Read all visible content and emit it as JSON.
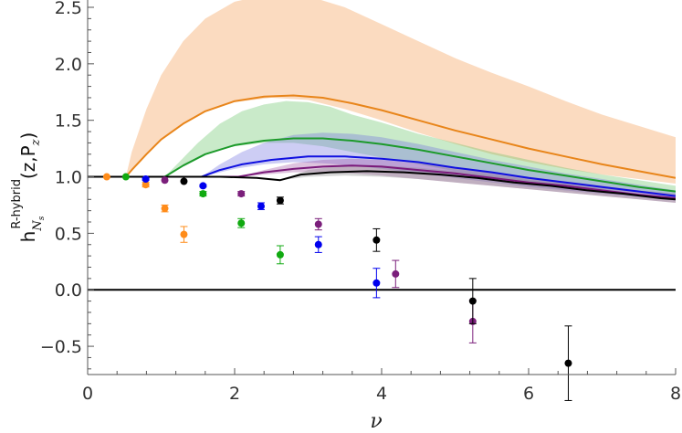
{
  "chart_data": {
    "type": "line",
    "title": "",
    "xlabel": "ν",
    "ylabel": {
      "base": "h",
      "superscript": "R-hybrid",
      "subscript": "N",
      "subsubscript": "s",
      "args": "(z,P",
      "args_sub": "z",
      "args_close": ")"
    },
    "xlim": [
      0,
      8
    ],
    "ylim": [
      -0.75,
      2.5
    ],
    "x_ticks": [
      0,
      2,
      4,
      6,
      8
    ],
    "x_tick_labels": [
      "0",
      "2",
      "4",
      "6",
      "8"
    ],
    "y_ticks": [
      -0.5,
      0.0,
      0.5,
      1.0,
      1.5,
      2.0,
      2.5
    ],
    "y_tick_labels": [
      "−0.5",
      "0.0",
      "0.5",
      "1.0",
      "1.5",
      "2.0",
      "2.5"
    ],
    "grid": false,
    "legend": "none",
    "zero_line": 0,
    "bands": [
      {
        "color": "#f5a05a",
        "opacity": 0.38,
        "upper": [
          [
            0.52,
            1.0
          ],
          [
            0.6,
            1.22
          ],
          [
            0.8,
            1.6
          ],
          [
            1.0,
            1.9
          ],
          [
            1.3,
            2.2
          ],
          [
            1.6,
            2.4
          ],
          [
            2.0,
            2.55
          ],
          [
            2.5,
            2.62
          ],
          [
            3.0,
            2.6
          ],
          [
            3.5,
            2.5
          ],
          [
            4.0,
            2.35
          ],
          [
            4.5,
            2.2
          ],
          [
            5.0,
            2.05
          ],
          [
            5.5,
            1.92
          ],
          [
            6.0,
            1.8
          ],
          [
            6.5,
            1.67
          ],
          [
            7.0,
            1.55
          ],
          [
            7.5,
            1.45
          ],
          [
            8.0,
            1.35
          ]
        ],
        "lower": [
          [
            0.52,
            1.0
          ],
          [
            0.7,
            1.13
          ],
          [
            1.0,
            1.33
          ],
          [
            1.3,
            1.47
          ],
          [
            1.6,
            1.58
          ],
          [
            2.0,
            1.66
          ],
          [
            2.5,
            1.7
          ],
          [
            3.0,
            1.68
          ],
          [
            3.5,
            1.6
          ],
          [
            4.0,
            1.5
          ],
          [
            4.5,
            1.39
          ],
          [
            5.0,
            1.29
          ],
          [
            5.5,
            1.2
          ],
          [
            6.0,
            1.13
          ],
          [
            6.5,
            1.07
          ],
          [
            7.0,
            1.02
          ],
          [
            7.5,
            0.98
          ],
          [
            8.0,
            0.94
          ]
        ]
      },
      {
        "color": "#5cc05c",
        "opacity": 0.33,
        "upper": [
          [
            1.05,
            1.0
          ],
          [
            1.2,
            1.1
          ],
          [
            1.5,
            1.3
          ],
          [
            1.8,
            1.47
          ],
          [
            2.1,
            1.58
          ],
          [
            2.4,
            1.64
          ],
          [
            2.7,
            1.67
          ],
          [
            3.0,
            1.66
          ],
          [
            3.3,
            1.62
          ],
          [
            3.6,
            1.55
          ],
          [
            4.0,
            1.48
          ],
          [
            4.5,
            1.38
          ],
          [
            5.0,
            1.3
          ],
          [
            5.5,
            1.22
          ],
          [
            6.0,
            1.15
          ],
          [
            6.5,
            1.08
          ],
          [
            7.0,
            1.02
          ],
          [
            7.5,
            0.97
          ],
          [
            8.0,
            0.92
          ]
        ],
        "lower": [
          [
            1.05,
            1.0
          ],
          [
            1.3,
            1.1
          ],
          [
            1.6,
            1.2
          ],
          [
            2.0,
            1.27
          ],
          [
            2.4,
            1.3
          ],
          [
            2.8,
            1.3
          ],
          [
            3.2,
            1.27
          ],
          [
            3.6,
            1.22
          ],
          [
            4.0,
            1.17
          ],
          [
            4.5,
            1.11
          ],
          [
            5.0,
            1.05
          ],
          [
            5.5,
            1.0
          ],
          [
            6.0,
            0.96
          ],
          [
            6.5,
            0.92
          ],
          [
            7.0,
            0.89
          ],
          [
            7.5,
            0.86
          ],
          [
            8.0,
            0.83
          ]
        ]
      },
      {
        "color": "#7070e0",
        "opacity": 0.35,
        "upper": [
          [
            1.55,
            1.0
          ],
          [
            1.8,
            1.11
          ],
          [
            2.1,
            1.22
          ],
          [
            2.4,
            1.3
          ],
          [
            2.8,
            1.37
          ],
          [
            3.2,
            1.39
          ],
          [
            3.6,
            1.38
          ],
          [
            4.0,
            1.35
          ],
          [
            4.5,
            1.29
          ],
          [
            5.0,
            1.22
          ],
          [
            5.5,
            1.15
          ],
          [
            6.0,
            1.09
          ],
          [
            6.5,
            1.03
          ],
          [
            7.0,
            0.98
          ],
          [
            7.5,
            0.93
          ],
          [
            8.0,
            0.88
          ]
        ],
        "lower": [
          [
            1.55,
            1.0
          ],
          [
            2.0,
            1.07
          ],
          [
            2.4,
            1.11
          ],
          [
            2.8,
            1.13
          ],
          [
            3.2,
            1.12
          ],
          [
            3.6,
            1.1
          ],
          [
            4.0,
            1.07
          ],
          [
            4.5,
            1.03
          ],
          [
            5.0,
            0.99
          ],
          [
            5.5,
            0.95
          ],
          [
            6.0,
            0.91
          ],
          [
            6.5,
            0.88
          ],
          [
            7.0,
            0.85
          ],
          [
            7.5,
            0.82
          ],
          [
            8.0,
            0.79
          ]
        ]
      },
      {
        "color": "#9a4a9a",
        "opacity": 0.33,
        "upper": [
          [
            2.05,
            1.0
          ],
          [
            2.4,
            1.06
          ],
          [
            2.8,
            1.12
          ],
          [
            3.2,
            1.15
          ],
          [
            3.6,
            1.16
          ],
          [
            4.0,
            1.15
          ],
          [
            4.5,
            1.12
          ],
          [
            5.0,
            1.08
          ],
          [
            5.5,
            1.04
          ],
          [
            6.0,
            1.0
          ],
          [
            6.5,
            0.96
          ],
          [
            7.0,
            0.92
          ],
          [
            7.5,
            0.88
          ],
          [
            8.0,
            0.85
          ]
        ],
        "lower": [
          [
            2.05,
            1.0
          ],
          [
            2.4,
            1.02
          ],
          [
            2.8,
            1.04
          ],
          [
            3.2,
            1.04
          ],
          [
            3.6,
            1.03
          ],
          [
            4.0,
            1.01
          ],
          [
            4.5,
            0.98
          ],
          [
            5.0,
            0.95
          ],
          [
            5.5,
            0.92
          ],
          [
            6.0,
            0.89
          ],
          [
            6.5,
            0.86
          ],
          [
            7.0,
            0.83
          ],
          [
            7.5,
            0.8
          ],
          [
            8.0,
            0.77
          ]
        ]
      },
      {
        "color": "#8a8a8a",
        "opacity": 0.35,
        "upper": [
          [
            2.62,
            0.97
          ],
          [
            3.0,
            1.06
          ],
          [
            3.5,
            1.1
          ],
          [
            4.0,
            1.1
          ],
          [
            4.5,
            1.08
          ],
          [
            5.0,
            1.05
          ],
          [
            5.5,
            1.01
          ],
          [
            6.0,
            0.97
          ],
          [
            6.5,
            0.93
          ],
          [
            7.0,
            0.89
          ],
          [
            7.5,
            0.85
          ],
          [
            8.0,
            0.82
          ]
        ],
        "lower": [
          [
            2.62,
            0.97
          ],
          [
            3.0,
            1.0
          ],
          [
            3.5,
            1.01
          ],
          [
            4.0,
            1.0
          ],
          [
            4.5,
            0.98
          ],
          [
            5.0,
            0.95
          ],
          [
            5.5,
            0.92
          ],
          [
            6.0,
            0.89
          ],
          [
            6.5,
            0.86
          ],
          [
            7.0,
            0.83
          ],
          [
            7.5,
            0.8
          ],
          [
            8.0,
            0.77
          ]
        ]
      }
    ],
    "series": [
      {
        "color": "#e8851a",
        "points": [
          [
            0,
            1.0
          ],
          [
            0.52,
            1.0
          ],
          [
            0.6,
            1.06
          ],
          [
            0.8,
            1.2
          ],
          [
            1.0,
            1.33
          ],
          [
            1.3,
            1.47
          ],
          [
            1.6,
            1.58
          ],
          [
            2.0,
            1.67
          ],
          [
            2.4,
            1.71
          ],
          [
            2.8,
            1.72
          ],
          [
            3.2,
            1.7
          ],
          [
            3.6,
            1.65
          ],
          [
            4.0,
            1.59
          ],
          [
            4.5,
            1.5
          ],
          [
            5.0,
            1.41
          ],
          [
            5.5,
            1.33
          ],
          [
            6.0,
            1.25
          ],
          [
            6.5,
            1.18
          ],
          [
            7.0,
            1.11
          ],
          [
            7.5,
            1.05
          ],
          [
            8.0,
            0.99
          ]
        ]
      },
      {
        "color": "#1c9a2a",
        "points": [
          [
            0,
            1.0
          ],
          [
            1.05,
            1.0
          ],
          [
            1.3,
            1.1
          ],
          [
            1.6,
            1.2
          ],
          [
            2.0,
            1.28
          ],
          [
            2.4,
            1.32
          ],
          [
            2.8,
            1.34
          ],
          [
            3.2,
            1.34
          ],
          [
            3.6,
            1.32
          ],
          [
            4.0,
            1.29
          ],
          [
            4.5,
            1.24
          ],
          [
            5.0,
            1.18
          ],
          [
            5.5,
            1.12
          ],
          [
            6.0,
            1.06
          ],
          [
            6.5,
            1.01
          ],
          [
            7.0,
            0.96
          ],
          [
            7.5,
            0.91
          ],
          [
            8.0,
            0.87
          ]
        ]
      },
      {
        "color": "#1010e0",
        "points": [
          [
            0,
            1.0
          ],
          [
            1.55,
            1.0
          ],
          [
            1.8,
            1.06
          ],
          [
            2.1,
            1.11
          ],
          [
            2.5,
            1.15
          ],
          [
            3.0,
            1.18
          ],
          [
            3.5,
            1.18
          ],
          [
            4.0,
            1.16
          ],
          [
            4.5,
            1.13
          ],
          [
            5.0,
            1.08
          ],
          [
            5.5,
            1.04
          ],
          [
            6.0,
            0.99
          ],
          [
            6.5,
            0.95
          ],
          [
            7.0,
            0.91
          ],
          [
            7.5,
            0.87
          ],
          [
            8.0,
            0.83
          ]
        ]
      },
      {
        "color": "#7a1a7a",
        "points": [
          [
            0,
            1.0
          ],
          [
            2.05,
            1.0
          ],
          [
            2.4,
            1.04
          ],
          [
            2.8,
            1.07
          ],
          [
            3.2,
            1.09
          ],
          [
            3.6,
            1.1
          ],
          [
            4.0,
            1.09
          ],
          [
            4.5,
            1.06
          ],
          [
            5.0,
            1.03
          ],
          [
            5.5,
            0.99
          ],
          [
            6.0,
            0.95
          ],
          [
            6.5,
            0.92
          ],
          [
            7.0,
            0.88
          ],
          [
            7.5,
            0.84
          ],
          [
            8.0,
            0.81
          ]
        ]
      },
      {
        "color": "#000000",
        "points": [
          [
            0,
            1.0
          ],
          [
            1.3,
            1.0
          ],
          [
            1.8,
            1.0
          ],
          [
            2.3,
            0.99
          ],
          [
            2.62,
            0.97
          ],
          [
            2.9,
            1.02
          ],
          [
            3.3,
            1.04
          ],
          [
            3.8,
            1.05
          ],
          [
            4.3,
            1.04
          ],
          [
            4.8,
            1.02
          ],
          [
            5.3,
            0.99
          ],
          [
            5.8,
            0.95
          ],
          [
            6.3,
            0.92
          ],
          [
            6.8,
            0.88
          ],
          [
            7.3,
            0.85
          ],
          [
            7.8,
            0.81
          ],
          [
            8.0,
            0.8
          ]
        ]
      }
    ],
    "scatter": [
      {
        "color": "#ff8c1a",
        "points": [
          {
            "x": 0.26,
            "y": 1.0,
            "err": 0.0
          },
          {
            "x": 0.79,
            "y": 0.93,
            "err": 0.02
          },
          {
            "x": 1.05,
            "y": 0.72,
            "err": 0.03
          },
          {
            "x": 1.31,
            "y": 0.49,
            "err": 0.07
          }
        ]
      },
      {
        "color": "#11aa11",
        "points": [
          {
            "x": 0.52,
            "y": 1.0,
            "err": 0.0
          },
          {
            "x": 1.57,
            "y": 0.85,
            "err": 0.02
          },
          {
            "x": 2.09,
            "y": 0.59,
            "err": 0.04
          },
          {
            "x": 2.62,
            "y": 0.31,
            "err": 0.08
          }
        ]
      },
      {
        "color": "#0000ee",
        "points": [
          {
            "x": 0.79,
            "y": 0.98,
            "err": 0.01
          },
          {
            "x": 1.57,
            "y": 0.92,
            "err": 0.01
          },
          {
            "x": 2.36,
            "y": 0.74,
            "err": 0.03
          },
          {
            "x": 3.14,
            "y": 0.4,
            "err": 0.07
          },
          {
            "x": 3.93,
            "y": 0.06,
            "err": 0.13
          }
        ]
      },
      {
        "color": "#7b1f7b",
        "points": [
          {
            "x": 1.05,
            "y": 0.97,
            "err": 0.0
          },
          {
            "x": 2.09,
            "y": 0.85,
            "err": 0.02
          },
          {
            "x": 3.14,
            "y": 0.58,
            "err": 0.05
          },
          {
            "x": 4.19,
            "y": 0.14,
            "err": 0.12
          },
          {
            "x": 5.24,
            "y": -0.28,
            "err": 0.19
          }
        ]
      },
      {
        "color": "#000000",
        "points": [
          {
            "x": 1.31,
            "y": 0.96,
            "err": 0.0
          },
          {
            "x": 2.62,
            "y": 0.79,
            "err": 0.03
          },
          {
            "x": 3.93,
            "y": 0.44,
            "err": 0.1
          },
          {
            "x": 5.24,
            "y": -0.1,
            "err": 0.2
          },
          {
            "x": 6.54,
            "y": -0.65,
            "err": 0.33
          }
        ]
      }
    ]
  }
}
